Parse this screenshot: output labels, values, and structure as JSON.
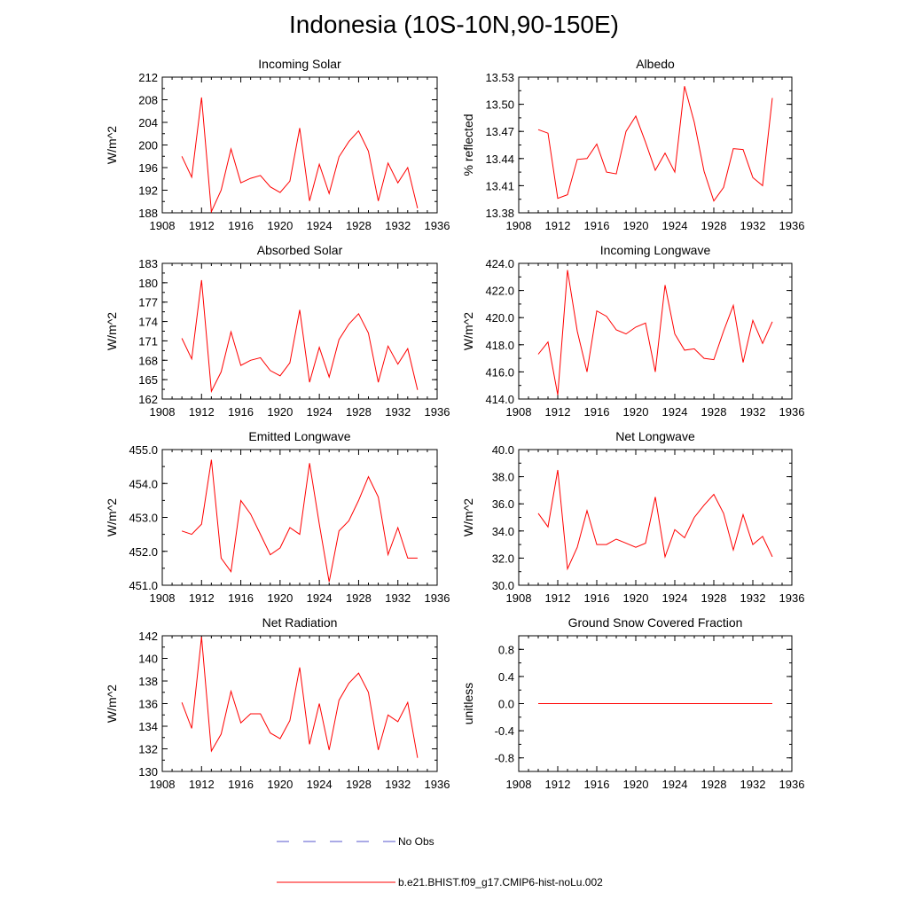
{
  "title": "Indonesia (10S-10N,90-150E)",
  "legend": {
    "items": [
      {
        "label": "No Obs",
        "style": "dashed",
        "color": "#5555cc"
      },
      {
        "label": "b.e21.BHIST.f09_g17.CMIP6-hist-noLu.002",
        "style": "solid",
        "color": "#ff0000"
      }
    ]
  },
  "chart_data": [
    {
      "type": "line",
      "title": "Incoming Solar",
      "ylabel": "W/m^2",
      "xlim": [
        1908,
        1936
      ],
      "ylim": [
        188,
        212
      ],
      "xticks": [
        1908,
        1912,
        1916,
        1920,
        1924,
        1928,
        1932,
        1936
      ],
      "yticks": [
        188,
        192,
        196,
        200,
        204,
        208,
        212
      ],
      "ytick_labels": [
        "188",
        "192",
        "196",
        "200",
        "204",
        "208",
        "212"
      ],
      "color": "#ff0000",
      "x": [
        1910,
        1911,
        1912,
        1913,
        1914,
        1915,
        1916,
        1917,
        1918,
        1919,
        1920,
        1921,
        1922,
        1923,
        1924,
        1925,
        1926,
        1927,
        1928,
        1929,
        1930,
        1931,
        1932,
        1933,
        1934
      ],
      "values": [
        198.0,
        194.3,
        208.4,
        188.2,
        192.0,
        199.3,
        193.3,
        194.1,
        194.6,
        192.6,
        191.6,
        193.6,
        203.0,
        190.1,
        196.6,
        191.4,
        197.9,
        200.6,
        202.5,
        198.9,
        190.1,
        196.8,
        193.3,
        196.0,
        188.8
      ]
    },
    {
      "type": "line",
      "title": "Albedo",
      "ylabel": "% reflected",
      "xlim": [
        1908,
        1936
      ],
      "ylim": [
        13.38,
        13.53
      ],
      "xticks": [
        1908,
        1912,
        1916,
        1920,
        1924,
        1928,
        1932,
        1936
      ],
      "yticks": [
        13.38,
        13.41,
        13.44,
        13.47,
        13.5,
        13.53
      ],
      "ytick_labels": [
        "13.38",
        "13.41",
        "13.44",
        "13.47",
        "13.50",
        "13.53"
      ],
      "color": "#ff0000",
      "x": [
        1910,
        1911,
        1912,
        1913,
        1914,
        1915,
        1916,
        1917,
        1918,
        1919,
        1920,
        1921,
        1922,
        1923,
        1924,
        1925,
        1926,
        1927,
        1928,
        1929,
        1930,
        1931,
        1932,
        1933,
        1934
      ],
      "values": [
        13.472,
        13.468,
        13.396,
        13.4,
        13.439,
        13.44,
        13.456,
        13.425,
        13.423,
        13.47,
        13.487,
        13.458,
        13.427,
        13.446,
        13.425,
        13.52,
        13.48,
        13.426,
        13.393,
        13.408,
        13.451,
        13.45,
        13.419,
        13.41,
        13.507
      ]
    },
    {
      "type": "line",
      "title": "Absorbed Solar",
      "ylabel": "W/m^2",
      "xlim": [
        1908,
        1936
      ],
      "ylim": [
        162,
        183
      ],
      "xticks": [
        1908,
        1912,
        1916,
        1920,
        1924,
        1928,
        1932,
        1936
      ],
      "yticks": [
        162,
        165,
        168,
        171,
        174,
        177,
        180,
        183
      ],
      "ytick_labels": [
        "162",
        "165",
        "168",
        "171",
        "174",
        "177",
        "180",
        "183"
      ],
      "color": "#ff0000",
      "x": [
        1910,
        1911,
        1912,
        1913,
        1914,
        1915,
        1916,
        1917,
        1918,
        1919,
        1920,
        1921,
        1922,
        1923,
        1924,
        1925,
        1926,
        1927,
        1928,
        1929,
        1930,
        1931,
        1932,
        1933,
        1934
      ],
      "values": [
        171.4,
        168.2,
        180.4,
        163.2,
        166.2,
        172.4,
        167.2,
        168.0,
        168.4,
        166.4,
        165.6,
        167.6,
        175.8,
        164.6,
        170.0,
        165.4,
        171.2,
        173.6,
        175.2,
        172.2,
        164.6,
        170.2,
        167.4,
        169.8,
        163.4
      ]
    },
    {
      "type": "line",
      "title": "Incoming Longwave",
      "ylabel": "W/m^2",
      "xlim": [
        1908,
        1936
      ],
      "ylim": [
        414.0,
        424.0
      ],
      "xticks": [
        1908,
        1912,
        1916,
        1920,
        1924,
        1928,
        1932,
        1936
      ],
      "yticks": [
        414,
        416,
        418,
        420,
        422,
        424
      ],
      "ytick_labels": [
        "414.0",
        "416.0",
        "418.0",
        "420.0",
        "422.0",
        "424.0"
      ],
      "color": "#ff0000",
      "x": [
        1910,
        1911,
        1912,
        1913,
        1914,
        1915,
        1916,
        1917,
        1918,
        1919,
        1920,
        1921,
        1922,
        1923,
        1924,
        1925,
        1926,
        1927,
        1928,
        1929,
        1930,
        1931,
        1932,
        1933,
        1934
      ],
      "values": [
        417.3,
        418.2,
        414.3,
        423.5,
        419.0,
        416.0,
        420.5,
        420.1,
        419.1,
        418.8,
        419.3,
        419.6,
        416.0,
        422.4,
        418.8,
        417.6,
        417.7,
        417.0,
        416.9,
        419.0,
        420.9,
        416.7,
        419.8,
        418.1,
        419.7
      ]
    },
    {
      "type": "line",
      "title": "Emitted Longwave",
      "ylabel": "W/m^2",
      "xlim": [
        1908,
        1936
      ],
      "ylim": [
        451.0,
        455.0
      ],
      "xticks": [
        1908,
        1912,
        1916,
        1920,
        1924,
        1928,
        1932,
        1936
      ],
      "yticks": [
        451,
        452,
        453,
        454,
        455
      ],
      "ytick_labels": [
        "451.0",
        "452.0",
        "453.0",
        "454.0",
        "455.0"
      ],
      "color": "#ff0000",
      "x": [
        1910,
        1911,
        1912,
        1913,
        1914,
        1915,
        1916,
        1917,
        1918,
        1919,
        1920,
        1921,
        1922,
        1923,
        1924,
        1925,
        1926,
        1927,
        1928,
        1929,
        1930,
        1931,
        1932,
        1933,
        1934
      ],
      "values": [
        452.6,
        452.5,
        452.8,
        454.7,
        451.8,
        451.4,
        453.5,
        453.1,
        452.5,
        451.9,
        452.1,
        452.7,
        452.5,
        454.6,
        452.8,
        451.1,
        452.6,
        452.9,
        453.5,
        454.2,
        453.6,
        451.9,
        452.7,
        451.8,
        451.8
      ]
    },
    {
      "type": "line",
      "title": "Net Longwave",
      "ylabel": "W/m^2",
      "xlim": [
        1908,
        1936
      ],
      "ylim": [
        30.0,
        40.0
      ],
      "xticks": [
        1908,
        1912,
        1916,
        1920,
        1924,
        1928,
        1932,
        1936
      ],
      "yticks": [
        30,
        32,
        34,
        36,
        38,
        40
      ],
      "ytick_labels": [
        "30.0",
        "32.0",
        "34.0",
        "36.0",
        "38.0",
        "40.0"
      ],
      "color": "#ff0000",
      "x": [
        1910,
        1911,
        1912,
        1913,
        1914,
        1915,
        1916,
        1917,
        1918,
        1919,
        1920,
        1921,
        1922,
        1923,
        1924,
        1925,
        1926,
        1927,
        1928,
        1929,
        1930,
        1931,
        1932,
        1933,
        1934
      ],
      "values": [
        35.3,
        34.3,
        38.5,
        31.2,
        32.8,
        35.5,
        33.0,
        33.0,
        33.4,
        33.1,
        32.8,
        33.1,
        36.5,
        32.1,
        34.1,
        33.5,
        35.0,
        35.9,
        36.7,
        35.3,
        32.6,
        35.2,
        33.0,
        33.6,
        32.1
      ]
    },
    {
      "type": "line",
      "title": "Net Radiation",
      "ylabel": "W/m^2",
      "xlim": [
        1908,
        1936
      ],
      "ylim": [
        130,
        142
      ],
      "xticks": [
        1908,
        1912,
        1916,
        1920,
        1924,
        1928,
        1932,
        1936
      ],
      "yticks": [
        130,
        132,
        134,
        136,
        138,
        140,
        142
      ],
      "ytick_labels": [
        "130",
        "132",
        "134",
        "136",
        "138",
        "140",
        "142"
      ],
      "color": "#ff0000",
      "x": [
        1910,
        1911,
        1912,
        1913,
        1914,
        1915,
        1916,
        1917,
        1918,
        1919,
        1920,
        1921,
        1922,
        1923,
        1924,
        1925,
        1926,
        1927,
        1928,
        1929,
        1930,
        1931,
        1932,
        1933,
        1934
      ],
      "values": [
        136.1,
        133.8,
        141.9,
        131.8,
        133.3,
        137.1,
        134.3,
        135.1,
        135.1,
        133.4,
        132.9,
        134.5,
        139.2,
        132.4,
        136.0,
        131.9,
        136.3,
        137.8,
        138.7,
        137.0,
        131.9,
        135.0,
        134.4,
        136.1,
        131.2
      ]
    },
    {
      "type": "line",
      "title": "Ground Snow Covered Fraction",
      "ylabel": "unitless",
      "xlim": [
        1908,
        1936
      ],
      "ylim": [
        -1.0,
        1.0
      ],
      "xticks": [
        1908,
        1912,
        1916,
        1920,
        1924,
        1928,
        1932,
        1936
      ],
      "yticks": [
        -0.8,
        -0.4,
        0.0,
        0.4,
        0.8
      ],
      "ytick_labels": [
        "-0.8",
        "-0.4",
        "0.0",
        "0.4",
        "0.8"
      ],
      "color": "#ff0000",
      "x": [
        1910,
        1911,
        1912,
        1913,
        1914,
        1915,
        1916,
        1917,
        1918,
        1919,
        1920,
        1921,
        1922,
        1923,
        1924,
        1925,
        1926,
        1927,
        1928,
        1929,
        1930,
        1931,
        1932,
        1933,
        1934
      ],
      "values": [
        0,
        0,
        0,
        0,
        0,
        0,
        0,
        0,
        0,
        0,
        0,
        0,
        0,
        0,
        0,
        0,
        0,
        0,
        0,
        0,
        0,
        0,
        0,
        0,
        0
      ]
    }
  ]
}
